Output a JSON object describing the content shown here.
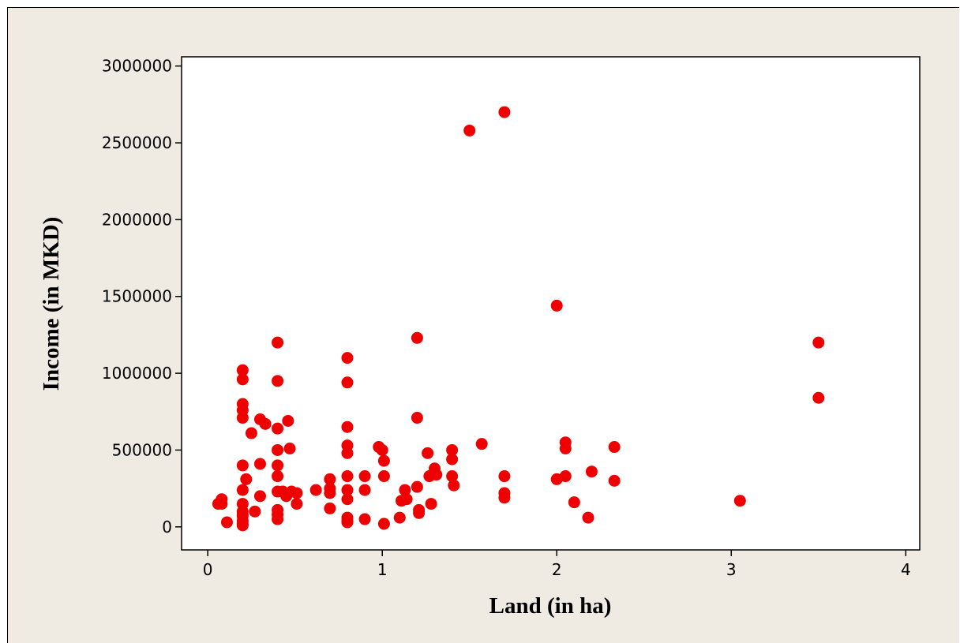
{
  "chart_data": {
    "type": "scatter",
    "xlabel": "Land (in ha)",
    "ylabel": "Income (in MKD)",
    "xlim": [
      -0.15,
      4.08
    ],
    "ylim": [
      -150000,
      3060000
    ],
    "xticks": [
      0,
      1,
      2,
      3,
      4
    ],
    "xtick_labels": [
      "0",
      "1",
      "2",
      "3",
      "4"
    ],
    "yticks": [
      0,
      500000,
      1000000,
      1500000,
      2000000,
      2500000,
      3000000
    ],
    "ytick_labels": [
      "0",
      "500000",
      "1000000",
      "1500000",
      "2000000",
      "2500000",
      "3000000"
    ],
    "grid": false,
    "colors": {
      "marker": "#ee0000",
      "plot_bg": "#ffffff",
      "frame_bg": "#efebe2"
    },
    "series": [
      {
        "x": [
          0.06,
          0.08,
          0.08,
          0.11,
          0.2,
          0.2,
          0.2,
          0.2,
          0.2,
          0.2,
          0.2,
          0.2,
          0.2,
          0.2,
          0.2,
          0.2,
          0.2,
          0.2,
          0.22,
          0.25,
          0.27,
          0.3,
          0.3,
          0.3,
          0.33,
          0.4,
          0.4,
          0.4,
          0.4,
          0.4,
          0.4,
          0.4,
          0.4,
          0.4,
          0.4,
          0.43,
          0.45,
          0.46,
          0.47,
          0.48,
          0.51,
          0.51,
          0.62,
          0.7,
          0.7,
          0.7,
          0.7,
          0.8,
          0.8,
          0.8,
          0.8,
          0.8,
          0.8,
          0.8,
          0.8,
          0.8,
          0.8,
          0.8,
          0.9,
          0.9,
          0.9,
          0.98,
          1.0,
          1.01,
          1.01,
          1.01,
          1.1,
          1.11,
          1.13,
          1.14,
          1.2,
          1.2,
          1.2,
          1.21,
          1.21,
          1.26,
          1.27,
          1.28,
          1.3,
          1.31,
          1.4,
          1.4,
          1.4,
          1.41,
          1.5,
          1.57,
          1.7,
          1.7,
          1.7,
          1.7,
          2.0,
          2.0,
          2.05,
          2.05,
          2.05,
          2.1,
          2.18,
          2.2,
          2.33,
          2.33,
          3.05,
          3.5,
          3.5
        ],
        "y": [
          150000,
          180000,
          150000,
          30000,
          1020000,
          960000,
          800000,
          760000,
          710000,
          400000,
          240000,
          150000,
          100000,
          80000,
          40000,
          20000,
          70000,
          10000,
          310000,
          610000,
          100000,
          700000,
          410000,
          200000,
          670000,
          1200000,
          950000,
          640000,
          500000,
          400000,
          330000,
          230000,
          110000,
          80000,
          50000,
          230000,
          200000,
          690000,
          510000,
          230000,
          220000,
          150000,
          240000,
          310000,
          250000,
          220000,
          120000,
          1100000,
          940000,
          650000,
          530000,
          480000,
          330000,
          240000,
          180000,
          60000,
          40000,
          30000,
          330000,
          240000,
          50000,
          520000,
          500000,
          430000,
          330000,
          20000,
          60000,
          170000,
          240000,
          180000,
          1230000,
          710000,
          260000,
          110000,
          90000,
          480000,
          330000,
          150000,
          380000,
          340000,
          500000,
          440000,
          330000,
          270000,
          2580000,
          540000,
          2700000,
          330000,
          220000,
          190000,
          1440000,
          310000,
          550000,
          510000,
          330000,
          160000,
          60000,
          360000,
          520000,
          300000,
          170000,
          1200000,
          840000
        ]
      }
    ]
  }
}
